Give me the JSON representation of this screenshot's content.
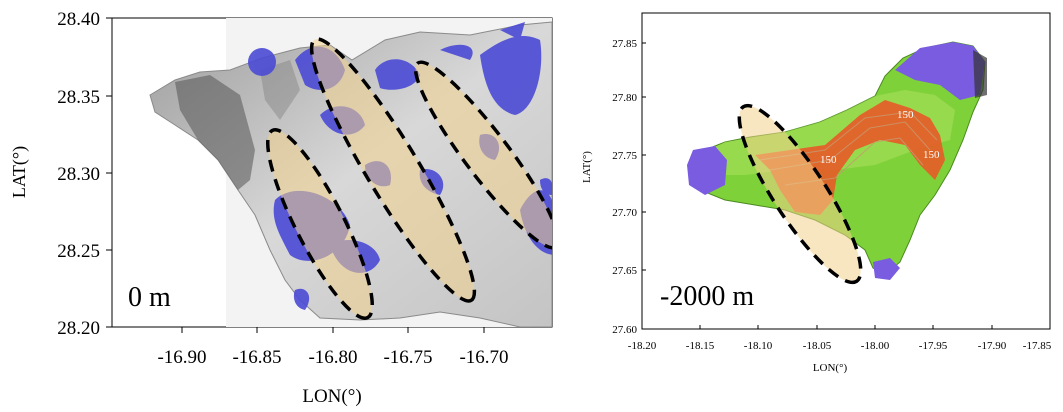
{
  "left_map": {
    "depth_label": "0 m",
    "xlabel": "LON(°)",
    "ylabel": "LAT(°)",
    "x_ticks": [
      "-16.90",
      "-16.85",
      "-16.80",
      "-16.75",
      "-16.70"
    ],
    "y_ticks": [
      "28.40",
      "28.35",
      "28.30",
      "28.25",
      "28.20"
    ],
    "xlim": [
      -16.945,
      -16.655
    ],
    "ylim": [
      28.2,
      28.4
    ],
    "highlight_ellipses": 3,
    "colors": {
      "relief": "#bdbdbd",
      "anomaly": "#4b4bd6",
      "ellipse_fill": "#f2d28c"
    }
  },
  "right_map": {
    "depth_label": "-2000 m",
    "xlabel": "LON(°)",
    "ylabel": "LAT(°)",
    "x_ticks": [
      "-18.20",
      "-18.15",
      "-18.10",
      "-18.05",
      "-18.00",
      "-17.95",
      "-17.90",
      "-17.85"
    ],
    "y_ticks": [
      "27.85",
      "27.80",
      "27.75",
      "27.70",
      "27.65",
      "27.60"
    ],
    "xlim": [
      -18.2,
      -17.85
    ],
    "ylim": [
      27.6,
      27.865
    ],
    "contour_labels": [
      "150",
      "150",
      "150"
    ],
    "highlight_ellipses": 1,
    "colors": {
      "low": "#7a5ce0",
      "mid": "#7fd13a",
      "high": "#e85a28",
      "ellipse_fill": "#f2d28c"
    }
  }
}
